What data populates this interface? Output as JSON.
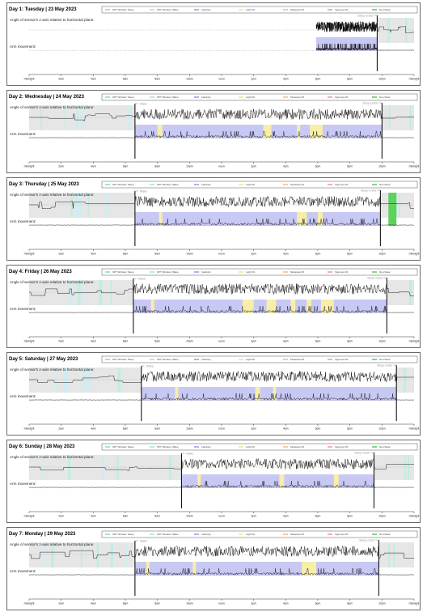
{
  "legend": {
    "items": [
      {
        "label": "SPT Window: Sleep",
        "color": "#7fd6c3"
      },
      {
        "label": "SPT Window: Wake",
        "color": "#9fd9e3"
      },
      {
        "label": "Inactivity",
        "color": "#8f8ff0"
      },
      {
        "label": "Light PA",
        "color": "#f6e27a"
      },
      {
        "label": "Moderate PA",
        "color": "#f2b37a"
      },
      {
        "label": "Vigorous PA",
        "color": "#ef8f8f"
      },
      {
        "label": "Non-Wear",
        "color": "#4cc64c"
      }
    ]
  },
  "labels": {
    "angle": "Angle of sensor's z-axis relative to horizontal plane:",
    "arm": "Arm movement:",
    "wake": "Wake",
    "sleep_onset": "Sleep-onset"
  },
  "colors": {
    "inactivity": "#c8c8f4",
    "spt_band": "#e6e6e6",
    "spt_sleep": "#bfeee0",
    "spt_wake": "#cdeef2",
    "light_pa": "#f7eeaa",
    "nonwear": "#5fd15f",
    "trace": "#000000",
    "marker": "#999999"
  },
  "chart_data": {
    "type": "line",
    "x_ticks": [
      "midnight",
      "2am",
      "4am",
      "6am",
      "8am",
      "10am",
      "noon",
      "2pm",
      "4pm",
      "6pm",
      "8pm",
      "10pm",
      "midnight"
    ],
    "xlim": [
      0,
      24
    ],
    "x_unit": "hour of day",
    "series_names": [
      "Angle of sensor's z-axis relative to horizontal plane",
      "Arm movement"
    ],
    "days": [
      {
        "title": "Day 1: Tuesday | 23 May 2023",
        "recording_start": 17.9,
        "wake": null,
        "sleep_onset": 21.7,
        "light_pa": [],
        "nonwear": []
      },
      {
        "title": "Day 2: Wednesday | 24 May 2023",
        "recording_start": 0,
        "wake": 6.6,
        "sleep_onset": 22.0,
        "light_pa": [
          [
            8.0,
            8.3
          ],
          [
            14.6,
            15.1
          ],
          [
            16.7,
            16.9
          ],
          [
            17.5,
            18.3
          ]
        ],
        "nonwear": []
      },
      {
        "title": "Day 3: Thursday | 25 May 2023",
        "recording_start": 0,
        "wake": 6.6,
        "sleep_onset": 21.9,
        "light_pa": [
          [
            8.1,
            8.3
          ],
          [
            16.7,
            17.3
          ],
          [
            18.0,
            18.3
          ]
        ],
        "nonwear": [
          [
            22.4,
            22.9
          ]
        ]
      },
      {
        "title": "Day 4: Friday | 26 May 2023",
        "recording_start": 0,
        "wake": 6.5,
        "sleep_onset": 22.3,
        "light_pa": [
          [
            7.6,
            7.8
          ],
          [
            13.3,
            14.0
          ],
          [
            14.8,
            15.4
          ],
          [
            16.3,
            16.6
          ],
          [
            17.3,
            17.6
          ],
          [
            18.2,
            19.0
          ]
        ],
        "nonwear": []
      },
      {
        "title": "Day 5: Saturday | 27 May 2023",
        "recording_start": 0,
        "wake": 7.0,
        "sleep_onset": 22.9,
        "light_pa": [
          [
            9.1,
            9.3
          ],
          [
            14.1,
            14.4
          ],
          [
            15.2,
            15.4
          ]
        ],
        "nonwear": []
      },
      {
        "title": "Day 6: Sunday | 28 May 2023",
        "recording_start": 0,
        "wake": 9.5,
        "sleep_onset": 21.5,
        "light_pa": [
          [
            10.5,
            10.7
          ],
          [
            15.6,
            15.9
          ],
          [
            19.0,
            19.3
          ]
        ],
        "nonwear": []
      },
      {
        "title": "Day 7: Monday | 29 May 2023",
        "recording_start": 0,
        "wake": 6.6,
        "sleep_onset": 21.8,
        "light_pa": [
          [
            7.3,
            7.5
          ],
          [
            10.2,
            10.4
          ],
          [
            17.0,
            17.9
          ]
        ],
        "nonwear": []
      }
    ]
  }
}
